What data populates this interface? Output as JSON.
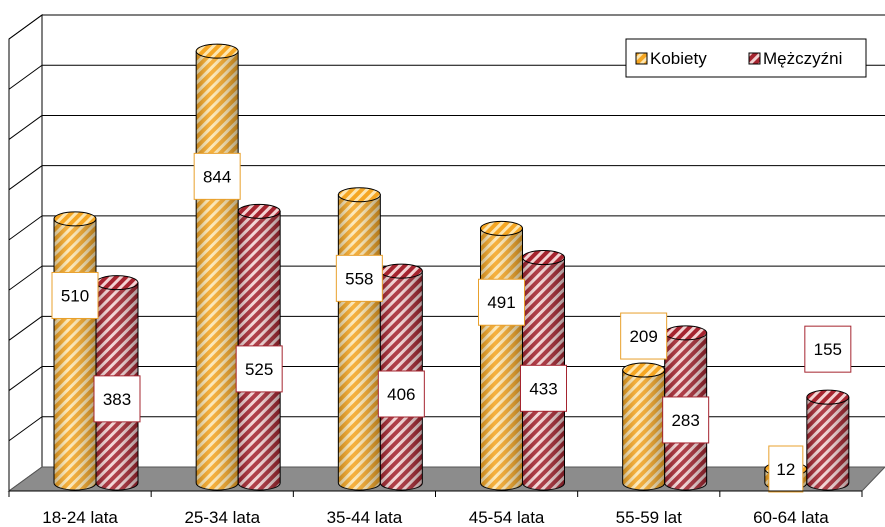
{
  "chart_data": {
    "type": "bar",
    "categories": [
      "18-24 lata",
      "25-34 lata",
      "35-44 lata",
      "45-54 lata",
      "55-59 lat",
      "60-64 lata"
    ],
    "series": [
      {
        "name": "Kobiety",
        "values": [
          510,
          844,
          558,
          491,
          209,
          12
        ],
        "color": "#f5a623",
        "stripe": "#fde6b0",
        "label_border": "#e8a02c"
      },
      {
        "name": "Mężczyźni",
        "values": [
          383,
          525,
          406,
          433,
          283,
          155
        ],
        "color": "#a5242f",
        "stripe": "#f3d2d2",
        "label_border": "#a5242f"
      }
    ],
    "ylim": [
      0,
      900
    ],
    "y_gridlines": 9,
    "y_tick_labels_shown": false,
    "grid": true,
    "legend_position": "top-right",
    "bar_style": "3d-cylinder",
    "fill_pattern": "diagonal-stripes"
  }
}
